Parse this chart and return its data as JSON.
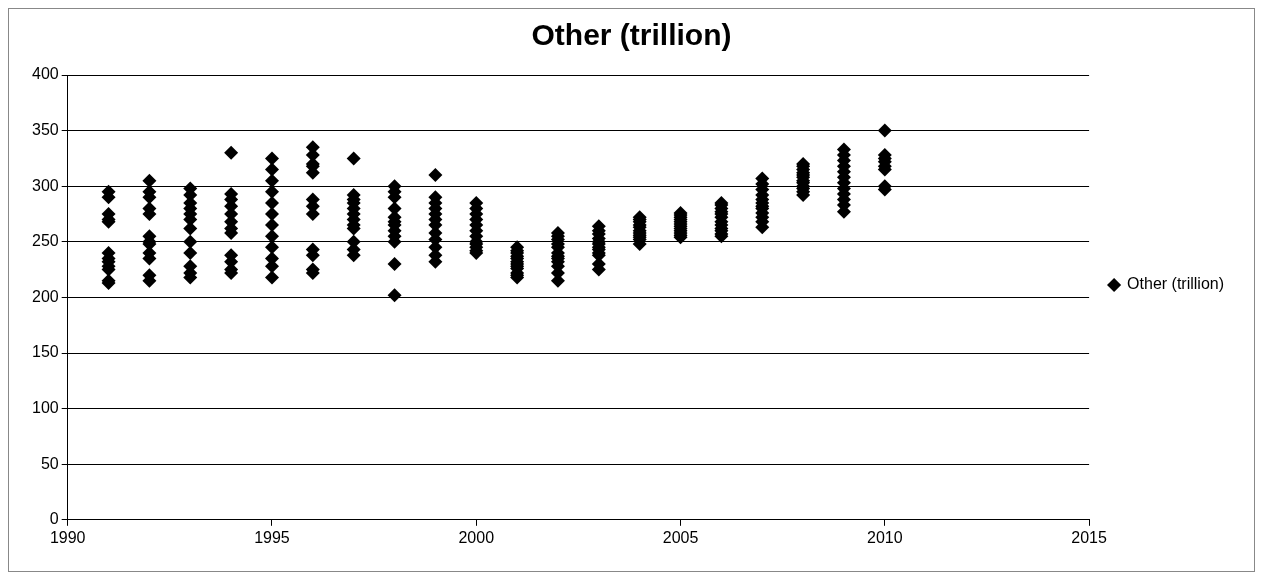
{
  "chart_data": {
    "type": "scatter",
    "title": "Other (trillion)",
    "xlim": [
      1990,
      2015
    ],
    "xticks": [
      1990,
      1995,
      2000,
      2005,
      2010,
      2015
    ],
    "ylim": [
      0,
      400
    ],
    "yticks": [
      0,
      50,
      100,
      150,
      200,
      250,
      300,
      350,
      400
    ],
    "grid": "y",
    "legend": "right",
    "marker": "diamond",
    "series": [
      {
        "name": "Other (trillion)",
        "color": "#000000",
        "x": [
          1991,
          1991,
          1991,
          1991,
          1991,
          1991,
          1991,
          1991,
          1991,
          1991,
          1991,
          1991,
          1992,
          1992,
          1992,
          1992,
          1992,
          1992,
          1992,
          1992,
          1992,
          1992,
          1992,
          1992,
          1993,
          1993,
          1993,
          1993,
          1993,
          1993,
          1993,
          1993,
          1993,
          1993,
          1993,
          1993,
          1994,
          1994,
          1994,
          1994,
          1994,
          1994,
          1994,
          1994,
          1994,
          1994,
          1994,
          1994,
          1995,
          1995,
          1995,
          1995,
          1995,
          1995,
          1995,
          1995,
          1995,
          1995,
          1995,
          1995,
          1996,
          1996,
          1996,
          1996,
          1996,
          1996,
          1996,
          1996,
          1996,
          1996,
          1996,
          1996,
          1997,
          1997,
          1997,
          1997,
          1997,
          1997,
          1997,
          1997,
          1997,
          1997,
          1997,
          1997,
          1998,
          1998,
          1998,
          1998,
          1998,
          1998,
          1998,
          1998,
          1998,
          1998,
          1998,
          1998,
          1999,
          1999,
          1999,
          1999,
          1999,
          1999,
          1999,
          1999,
          1999,
          1999,
          1999,
          1999,
          2000,
          2000,
          2000,
          2000,
          2000,
          2000,
          2000,
          2000,
          2000,
          2000,
          2000,
          2000,
          2001,
          2001,
          2001,
          2001,
          2001,
          2001,
          2001,
          2001,
          2001,
          2001,
          2001,
          2001,
          2002,
          2002,
          2002,
          2002,
          2002,
          2002,
          2002,
          2002,
          2002,
          2002,
          2002,
          2002,
          2003,
          2003,
          2003,
          2003,
          2003,
          2003,
          2003,
          2003,
          2003,
          2003,
          2003,
          2003,
          2004,
          2004,
          2004,
          2004,
          2004,
          2004,
          2004,
          2004,
          2004,
          2004,
          2004,
          2005,
          2005,
          2005,
          2005,
          2005,
          2005,
          2005,
          2005,
          2005,
          2005,
          2005,
          2005,
          2006,
          2006,
          2006,
          2006,
          2006,
          2006,
          2006,
          2006,
          2006,
          2006,
          2006,
          2006,
          2007,
          2007,
          2007,
          2007,
          2007,
          2007,
          2007,
          2007,
          2007,
          2007,
          2007,
          2007,
          2008,
          2008,
          2008,
          2008,
          2008,
          2008,
          2008,
          2008,
          2008,
          2008,
          2008,
          2008,
          2009,
          2009,
          2009,
          2009,
          2009,
          2009,
          2009,
          2009,
          2009,
          2009,
          2009,
          2009,
          2010,
          2010,
          2010,
          2010,
          2010,
          2010,
          2010,
          2010
        ],
        "values": [
          295,
          290,
          275,
          270,
          268,
          240,
          235,
          232,
          228,
          225,
          215,
          213,
          305,
          295,
          290,
          280,
          275,
          255,
          250,
          248,
          240,
          235,
          220,
          215,
          298,
          292,
          285,
          280,
          275,
          270,
          262,
          250,
          240,
          228,
          222,
          218,
          330,
          293,
          288,
          282,
          275,
          268,
          262,
          258,
          238,
          232,
          225,
          222,
          325,
          315,
          305,
          295,
          285,
          275,
          265,
          255,
          245,
          235,
          228,
          218,
          335,
          328,
          320,
          318,
          312,
          288,
          282,
          275,
          243,
          238,
          225,
          222,
          325,
          292,
          288,
          285,
          280,
          275,
          270,
          265,
          262,
          250,
          243,
          238,
          300,
          295,
          290,
          280,
          272,
          268,
          265,
          260,
          255,
          250,
          230,
          202,
          310,
          290,
          285,
          280,
          275,
          270,
          265,
          258,
          252,
          245,
          238,
          232,
          285,
          280,
          275,
          270,
          265,
          260,
          255,
          250,
          248,
          245,
          242,
          240,
          245,
          242,
          240,
          237,
          235,
          232,
          230,
          228,
          226,
          222,
          220,
          218,
          258,
          255,
          252,
          248,
          245,
          240,
          237,
          235,
          232,
          228,
          222,
          215,
          264,
          260,
          257,
          253,
          250,
          248,
          245,
          243,
          240,
          238,
          230,
          225,
          272,
          270,
          268,
          265,
          263,
          260,
          258,
          256,
          254,
          252,
          248,
          276,
          274,
          272,
          270,
          268,
          266,
          264,
          262,
          260,
          258,
          256,
          254,
          285,
          283,
          280,
          277,
          275,
          272,
          268,
          265,
          262,
          260,
          257,
          255,
          307,
          302,
          297,
          292,
          288,
          285,
          282,
          280,
          276,
          272,
          268,
          263,
          320,
          318,
          315,
          312,
          310,
          308,
          305,
          303,
          300,
          298,
          295,
          292,
          333,
          328,
          323,
          318,
          313,
          308,
          303,
          298,
          293,
          288,
          283,
          277,
          350,
          328,
          325,
          322,
          318,
          315,
          300,
          297
        ]
      }
    ]
  }
}
